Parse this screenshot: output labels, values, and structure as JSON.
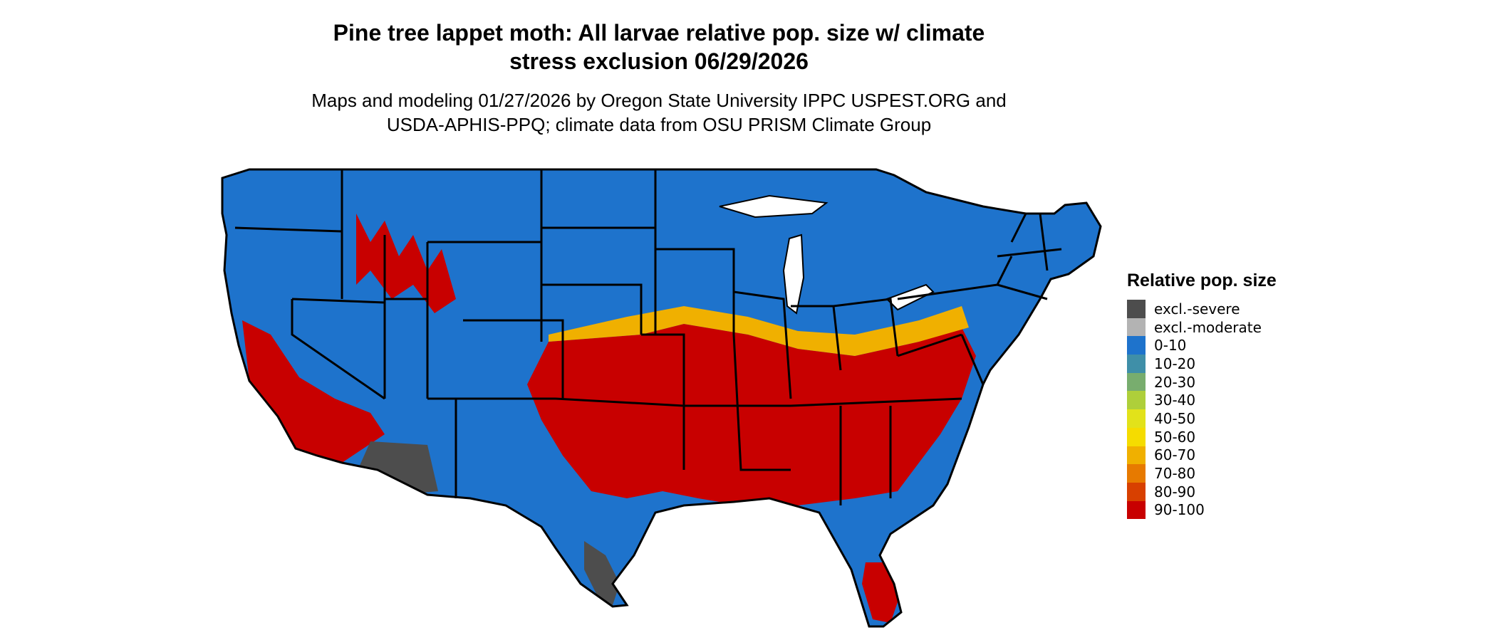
{
  "title_lines": [
    "Pine tree lappet moth: All larvae relative pop. size w/ climate",
    "stress exclusion 06/29/2026"
  ],
  "subtitle_lines": [
    "Maps and modeling 01/27/2026 by Oregon State University IPPC USPEST.ORG and",
    "USDA-APHIS-PPQ; climate data from OSU PRISM Climate Group"
  ],
  "legend": {
    "title": "Relative pop. size",
    "items": [
      {
        "label": "excl.-severe",
        "color": "#4d4d4d"
      },
      {
        "label": "excl.-moderate",
        "color": "#b3b3b3"
      },
      {
        "label": "0-10",
        "color": "#1e73cc"
      },
      {
        "label": "10-20",
        "color": "#3f8fa8"
      },
      {
        "label": "20-30",
        "color": "#78ad6e"
      },
      {
        "label": "30-40",
        "color": "#aecf3a"
      },
      {
        "label": "40-50",
        "color": "#e2e21a"
      },
      {
        "label": "50-60",
        "color": "#f5dc00"
      },
      {
        "label": "60-70",
        "color": "#f0b000"
      },
      {
        "label": "70-80",
        "color": "#e77a00"
      },
      {
        "label": "80-90",
        "color": "#d84000"
      },
      {
        "label": "90-100",
        "color": "#c80000"
      }
    ]
  },
  "map_colors": {
    "low": "#1e73cc",
    "high": "#c80000",
    "mid": "#f0b000",
    "excl_severe": "#4d4d4d",
    "excl_moderate": "#b3b3b3",
    "border": "#000000"
  }
}
